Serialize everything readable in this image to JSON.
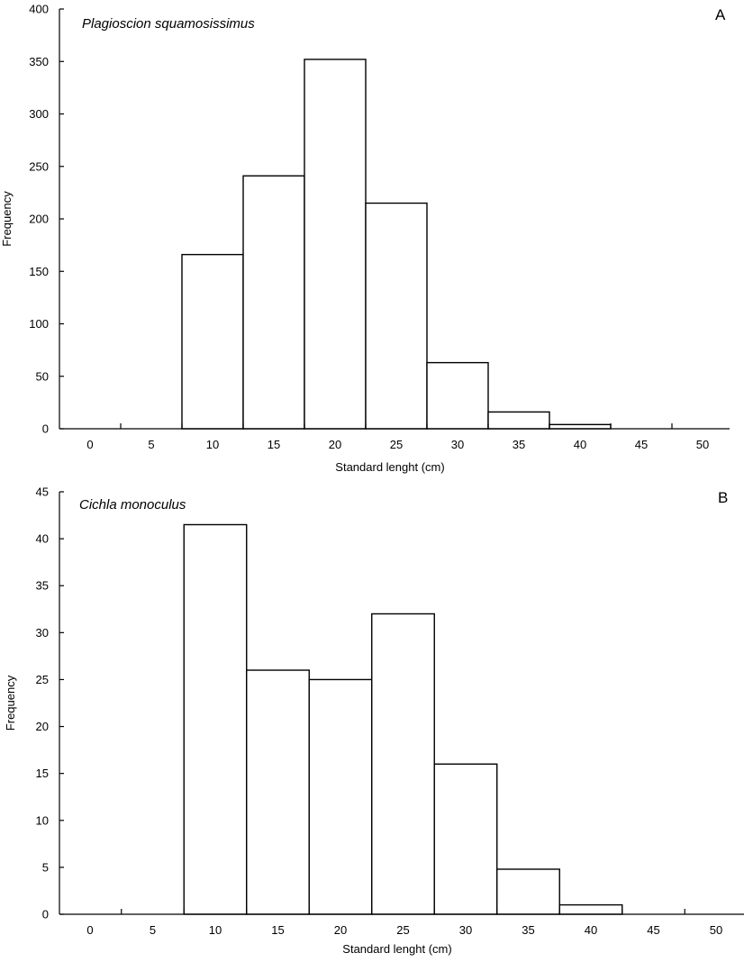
{
  "chart_data": [
    {
      "type": "bar",
      "panel_label": "A",
      "species": "Plagioscion squamosissimus",
      "xlabel": "Standard lenght (cm)",
      "ylabel": "Frequency",
      "categories": [
        "0",
        "5",
        "10",
        "15",
        "20",
        "25",
        "30",
        "35",
        "40",
        "45",
        "50"
      ],
      "values": [
        0,
        0,
        166,
        241,
        352,
        215,
        63,
        16,
        4,
        0,
        0
      ],
      "ylim": [
        0,
        400
      ],
      "yticks": [
        "0",
        "50",
        "100",
        "150",
        "200",
        "250",
        "300",
        "350",
        "400"
      ],
      "grid": false,
      "legend": "none"
    },
    {
      "type": "bar",
      "panel_label": "B",
      "species": "Cichla monoculus",
      "xlabel": "Standard lenght (cm)",
      "ylabel": "Frequency",
      "categories": [
        "0",
        "5",
        "10",
        "15",
        "20",
        "25",
        "30",
        "35",
        "40",
        "45",
        "50"
      ],
      "values": [
        0,
        0,
        41.5,
        26,
        25,
        32,
        16,
        4.8,
        1,
        0,
        0
      ],
      "ylim": [
        0,
        45
      ],
      "yticks": [
        "0",
        "5",
        "10",
        "15",
        "20",
        "25",
        "30",
        "35",
        "40",
        "45"
      ],
      "grid": false,
      "legend": "none"
    }
  ]
}
